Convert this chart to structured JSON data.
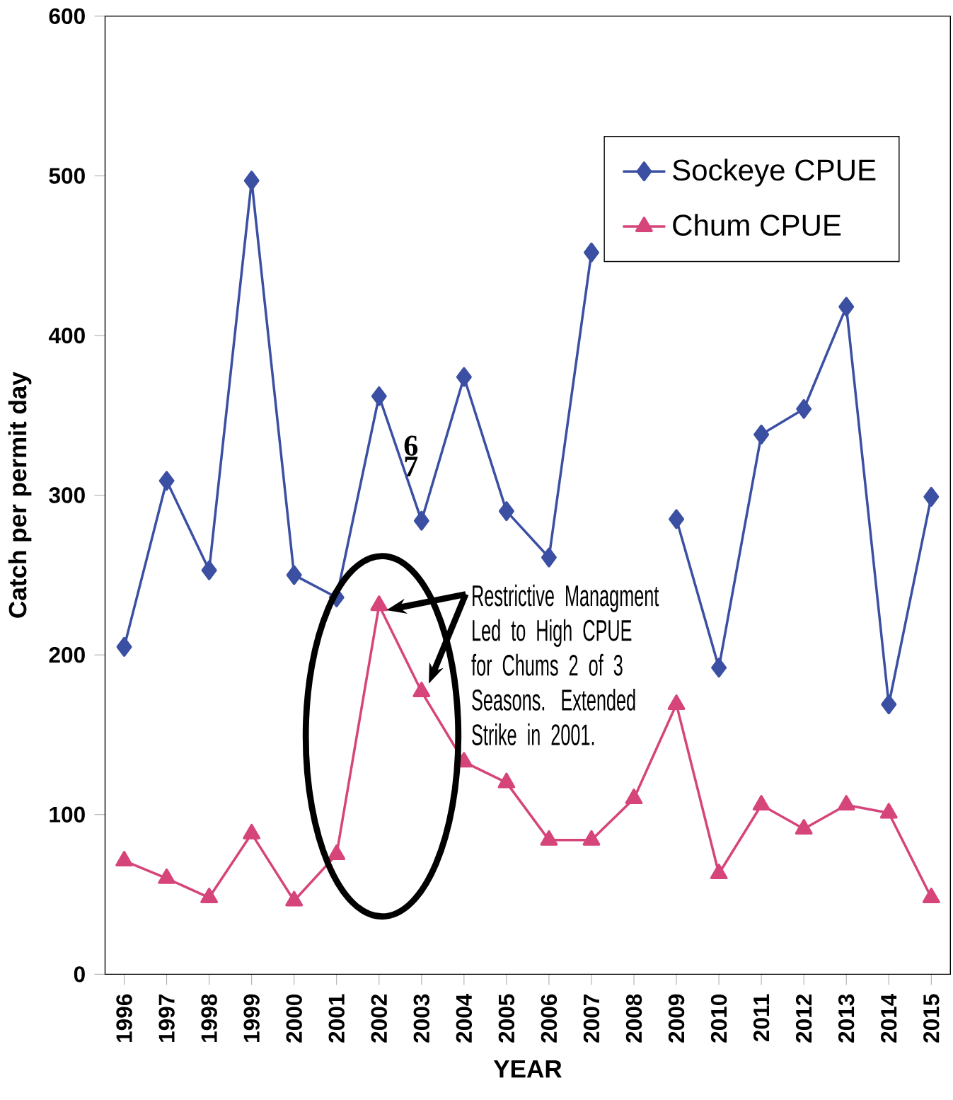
{
  "chart_data": {
    "type": "line",
    "xlabel": "YEAR",
    "ylabel": "Catch per permit day",
    "categories": [
      "1996",
      "1997",
      "1998",
      "1999",
      "2000",
      "2001",
      "2002",
      "2003",
      "2004",
      "2005",
      "2006",
      "2007",
      "2008",
      "2009",
      "2010",
      "2011",
      "2012",
      "2013",
      "2014",
      "2015"
    ],
    "series": [
      {
        "name": "Sockeye CPUE",
        "color": "#3b4fa3",
        "marker": "diamond",
        "values": [
          205,
          309,
          253,
          497,
          250,
          236,
          362,
          284,
          374,
          290,
          261,
          452,
          null,
          285,
          192,
          338,
          354,
          418,
          169,
          299
        ]
      },
      {
        "name": "Chum CPUE",
        "color": "#d6457a",
        "marker": "triangle",
        "values": [
          71,
          60,
          48,
          88,
          46,
          75,
          231,
          177,
          133,
          120,
          84,
          84,
          110,
          169,
          63,
          106,
          91,
          106,
          101,
          48
        ]
      }
    ],
    "ylim": [
      0,
      600
    ],
    "yticks": [
      0,
      100,
      200,
      300,
      400,
      500,
      600
    ],
    "grid": false,
    "legend": "top right",
    "line_style": "solid",
    "annotations": [
      "Restrictive Managment Led to High CPUE for Chums 2 of 3 Seasons. Extended Strike in 2001.",
      "6",
      "7"
    ]
  }
}
